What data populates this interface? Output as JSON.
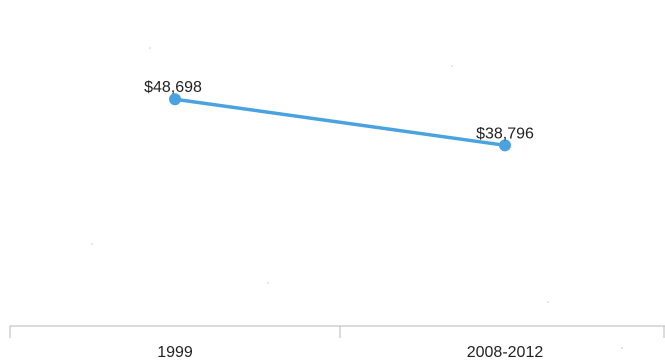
{
  "chart_data": {
    "type": "line",
    "categories": [
      "1999",
      "2008-2012"
    ],
    "series": [
      {
        "values": [
          48698,
          38796
        ],
        "labels": [
          "$48,698",
          "$38,796"
        ],
        "color": "#4aa3df"
      }
    ],
    "title": "",
    "xlabel": "",
    "ylabel": "",
    "ylim": [
      0,
      70000
    ],
    "grid": false,
    "legend": "none"
  }
}
